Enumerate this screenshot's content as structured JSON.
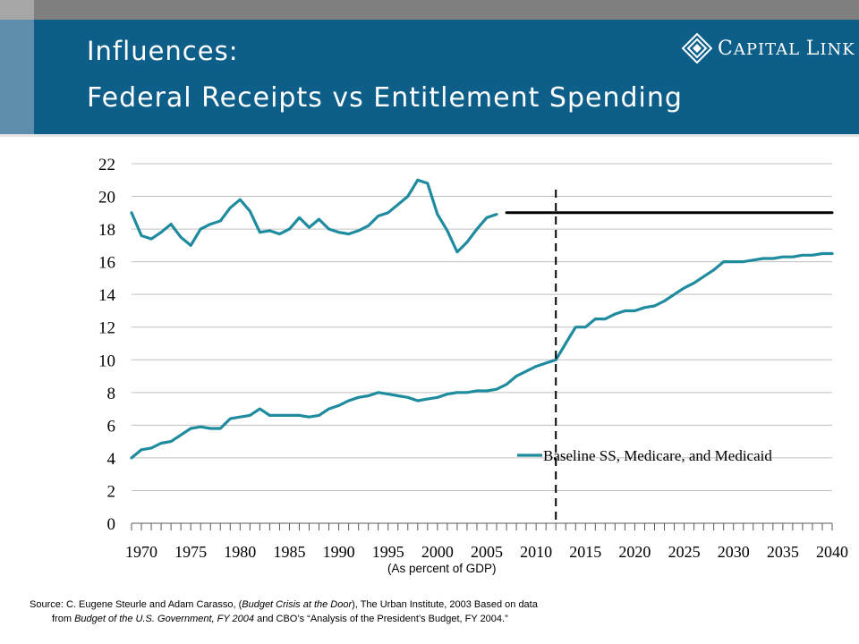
{
  "header": {
    "title_line1": "Influences:",
    "title_line2": "Federal Receipts vs Entitlement Spending",
    "logo_text_c": "C",
    "logo_text_apital": "APITAL ",
    "logo_text_l": "L",
    "logo_text_ink": "INK",
    "logo_icon": "diamond-icon"
  },
  "colors": {
    "header_bg": "#0d5f89",
    "series_line": "#1f8b9e",
    "receipts_projection": "#000000"
  },
  "chart_data": {
    "type": "line",
    "title": "",
    "xlabel": "(As percent of GDP)",
    "ylabel": "",
    "xlim": [
      1969,
      2040
    ],
    "ylim": [
      0,
      22
    ],
    "y_ticks": [
      "0",
      "2",
      "4",
      "6",
      "8",
      "10",
      "12",
      "14",
      "16",
      "18",
      "20",
      "22"
    ],
    "x_ticks": [
      "1970",
      "1975",
      "1980",
      "1985",
      "1990",
      "1995",
      "2000",
      "2005",
      "2010",
      "2015",
      "2020",
      "2025",
      "2030",
      "2035",
      "2040"
    ],
    "grid": "horizontal",
    "legend_position": "bottom-right",
    "series": [
      {
        "key": "receipts",
        "x": [
          1969,
          1970,
          1971,
          1972,
          1973,
          1974,
          1975,
          1976,
          1977,
          1978,
          1979,
          1980,
          1981,
          1982,
          1983,
          1984,
          1985,
          1986,
          1987,
          1988,
          1989,
          1990,
          1991,
          1992,
          1993,
          1994,
          1995,
          1996,
          1997,
          1998,
          1999,
          2000,
          2001,
          2002,
          2003,
          2004,
          2005,
          2006,
          2007
        ],
        "values": [
          19.0,
          17.6,
          17.4,
          17.8,
          18.3,
          17.5,
          17.0,
          18.0,
          18.3,
          18.5,
          19.3,
          19.8,
          19.1,
          17.8,
          17.9,
          17.7,
          18.0,
          18.7,
          18.1,
          18.6,
          18.0,
          17.8,
          17.7,
          17.9,
          18.2,
          18.8,
          19.0,
          19.5,
          20.0,
          21.0,
          20.8,
          18.9,
          17.9,
          16.6,
          17.2,
          18.0,
          18.7,
          18.9,
          null
        ]
      },
      {
        "key": "receipts_projection",
        "x": [
          2007,
          2040
        ],
        "values": [
          19.0,
          19.0
        ]
      },
      {
        "key": "entitlements",
        "name": "Baseline SS, Medicare, and Medicaid",
        "x": [
          1969,
          1970,
          1971,
          1972,
          1973,
          1974,
          1975,
          1976,
          1977,
          1978,
          1979,
          1980,
          1981,
          1982,
          1983,
          1984,
          1985,
          1986,
          1987,
          1988,
          1989,
          1990,
          1991,
          1992,
          1993,
          1994,
          1995,
          1996,
          1997,
          1998,
          1999,
          2000,
          2001,
          2002,
          2003,
          2004,
          2005,
          2006,
          2007,
          2008,
          2009,
          2010,
          2011,
          2012,
          2013,
          2014,
          2015,
          2016,
          2017,
          2018,
          2019,
          2020,
          2021,
          2022,
          2023,
          2024,
          2025,
          2026,
          2027,
          2028,
          2029,
          2030,
          2031,
          2032,
          2033,
          2034,
          2035,
          2036,
          2037,
          2038,
          2039,
          2040
        ],
        "values": [
          4.0,
          4.5,
          4.6,
          4.9,
          5.0,
          5.4,
          5.8,
          5.9,
          5.8,
          5.8,
          6.4,
          6.5,
          6.6,
          7.0,
          6.6,
          6.6,
          6.6,
          6.6,
          6.5,
          6.6,
          7.0,
          7.2,
          7.5,
          7.7,
          7.8,
          8.0,
          7.9,
          7.8,
          7.7,
          7.5,
          7.6,
          7.7,
          7.9,
          8.0,
          8.0,
          8.1,
          8.1,
          8.2,
          8.5,
          9.0,
          9.3,
          9.6,
          9.8,
          10.0,
          11.0,
          12.0,
          12.0,
          12.5,
          12.5,
          12.8,
          13.0,
          13.0,
          13.2,
          13.3,
          13.6,
          14.0,
          14.4,
          14.7,
          15.1,
          15.5,
          16.0,
          16.0,
          16.0,
          16.1,
          16.2,
          16.2,
          16.3,
          16.3,
          16.4,
          16.4,
          16.5,
          16.5
        ]
      }
    ],
    "vertical_marker_x": 2012
  },
  "source": {
    "prefix": "Source:  C. Eugene Steurle and Adam Carasso, (",
    "title1": "Budget Crisis at the Door",
    "middle": "),    The Urban Institute, 2003 Based on data",
    "line2_prefix": "from  ",
    "title2": "Budget of the U.S. Government,  FY 2004",
    "line2_suffix": " and CBO’s “Analysis of  the President’s Budget, FY 2004.”"
  }
}
